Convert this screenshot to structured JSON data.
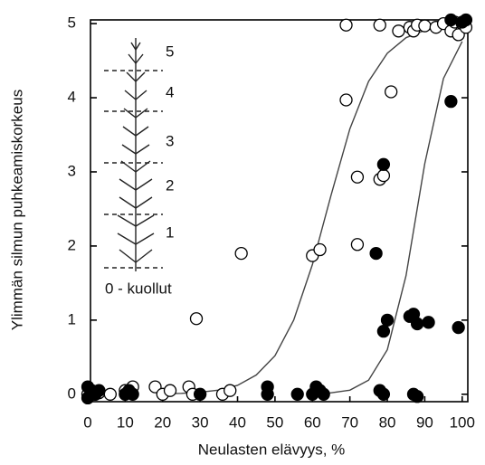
{
  "chart_data": {
    "type": "scatter",
    "xlabel": "Neulasten elävyys, %",
    "ylabel": "Ylimmän silmun  puhkeamiskorkeus",
    "xlim": [
      0,
      101.5
    ],
    "ylim": [
      -0.1,
      5.05
    ],
    "xticks": [
      0,
      10,
      20,
      30,
      40,
      50,
      60,
      70,
      80,
      90,
      100
    ],
    "yticks": [
      0,
      1,
      2,
      3,
      4,
      5
    ],
    "series": [
      {
        "marker": "open",
        "color": "#000000",
        "x": [
          0,
          1,
          2,
          3,
          6,
          10,
          12,
          18,
          20,
          22,
          27,
          28,
          29,
          36,
          38,
          41,
          60,
          62,
          69,
          72,
          72,
          78,
          79,
          81,
          69,
          78,
          83,
          86,
          87,
          88,
          90,
          93,
          95,
          97,
          98,
          99,
          100,
          101
        ],
        "values": [
          0,
          0.05,
          0,
          0.02,
          0,
          0.05,
          0.1,
          0.1,
          0,
          0.05,
          0.1,
          0,
          1.02,
          0,
          0.05,
          1.9,
          1.87,
          1.95,
          3.97,
          2.93,
          2.02,
          2.9,
          2.95,
          4.08,
          4.98,
          4.98,
          4.9,
          4.95,
          4.9,
          4.98,
          4.97,
          4.95,
          5.0,
          4.9,
          5.02,
          4.85,
          5.0,
          4.95
        ]
      },
      {
        "marker": "filled",
        "color": "#000000",
        "x": [
          0,
          1,
          2,
          3,
          0,
          10,
          11,
          12,
          30,
          48,
          48,
          56,
          60,
          61,
          62,
          63,
          78,
          79,
          77,
          79,
          79,
          80,
          86,
          87,
          87,
          88,
          88,
          91,
          97,
          99,
          97,
          100,
          101
        ],
        "values": [
          -0.05,
          0.05,
          0,
          0.05,
          0.1,
          0,
          0.05,
          0,
          0,
          0.1,
          0,
          0,
          0,
          0.1,
          0.05,
          0,
          0.05,
          0,
          1.9,
          3.1,
          0.85,
          1.0,
          1.05,
          1.08,
          0,
          -0.03,
          0.95,
          0.97,
          3.95,
          0.9,
          5.05,
          5.02,
          5.05
        ]
      }
    ],
    "curves": [
      {
        "color": "#444444",
        "x": [
          20,
          25,
          30,
          35,
          40,
          45,
          50,
          55,
          60,
          65,
          70,
          75,
          80,
          85,
          90,
          95,
          100
        ],
        "values": [
          0.006,
          0.012,
          0.027,
          0.057,
          0.12,
          0.26,
          0.52,
          1.0,
          1.75,
          2.69,
          3.58,
          4.22,
          4.6,
          4.81,
          4.91,
          4.96,
          4.98
        ]
      },
      {
        "color": "#444444",
        "x": [
          60,
          65,
          70,
          75,
          80,
          85,
          90,
          95,
          100
        ],
        "values": [
          0.005,
          0.02,
          0.055,
          0.19,
          0.6,
          1.6,
          3.11,
          4.26,
          4.76
        ]
      }
    ],
    "inset_labels": [
      "5",
      "4",
      "3",
      "2",
      "1",
      "0 - kuollut"
    ]
  }
}
